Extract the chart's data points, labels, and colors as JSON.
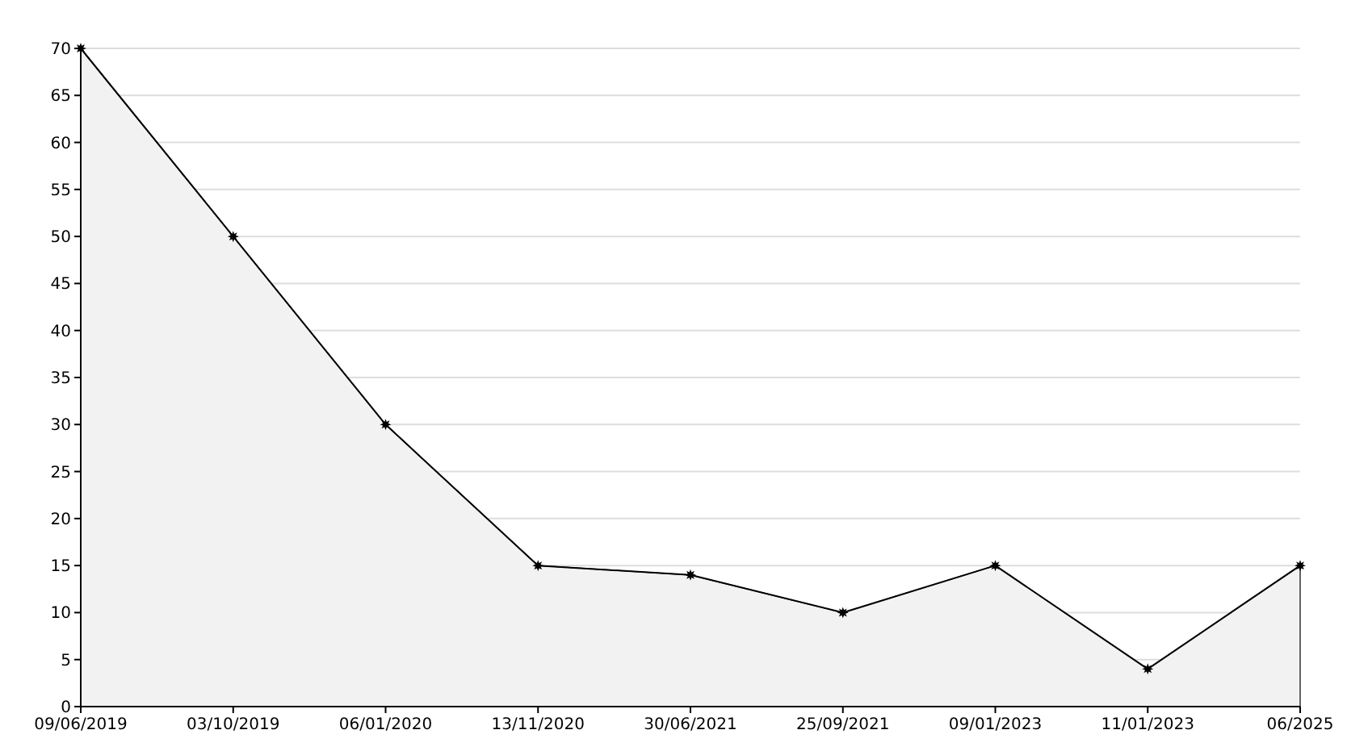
{
  "chart_data": {
    "type": "area",
    "categories": [
      "09/06/2019",
      "03/10/2019",
      "06/01/2020",
      "13/11/2020",
      "30/06/2021",
      "25/09/2021",
      "09/01/2023",
      "11/01/2023",
      "06/2025"
    ],
    "series": [
      {
        "color": "#000000",
        "values": [
          70,
          50,
          30,
          15,
          14,
          10,
          15,
          4,
          15
        ]
      }
    ],
    "ylim": [
      0,
      70
    ],
    "yticks": [
      0,
      5,
      10,
      15,
      20,
      25,
      30,
      35,
      40,
      45,
      50,
      55,
      60,
      65,
      70
    ],
    "grid": "y",
    "marker": "star",
    "line_style": "solid"
  }
}
